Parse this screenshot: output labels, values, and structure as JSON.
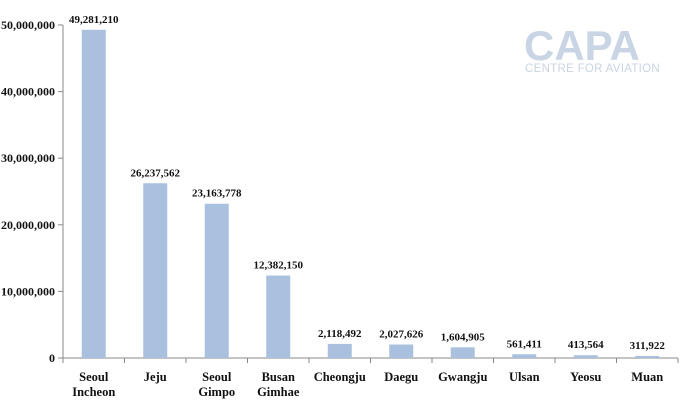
{
  "chart_data": {
    "type": "bar",
    "categories": [
      [
        "Seoul",
        "Incheon"
      ],
      [
        "Jeju"
      ],
      [
        "Seoul",
        "Gimpo"
      ],
      [
        "Busan",
        "Gimhae"
      ],
      [
        "Cheongju"
      ],
      [
        "Daegu"
      ],
      [
        "Gwangju"
      ],
      [
        "Ulsan"
      ],
      [
        "Yeosu"
      ],
      [
        "Muan"
      ]
    ],
    "values": [
      49281210,
      26237562,
      23163778,
      12382150,
      2118492,
      2027626,
      1604905,
      561411,
      413564,
      311922
    ],
    "data_labels": [
      "49,281,210",
      "26,237,562",
      "23,163,778",
      "12,382,150",
      "2,118,492",
      "2,027,626",
      "1,604,905",
      "561,411",
      "413,564",
      "311,922"
    ],
    "ylim": [
      0,
      50000000
    ],
    "yticks": [
      0,
      10000000,
      20000000,
      30000000,
      40000000,
      50000000
    ],
    "ytick_labels": [
      "0",
      "10,000,000",
      "20,000,000",
      "30,000,000",
      "40,000,000",
      "50,000,000"
    ],
    "bar_color": "#a9c1de",
    "grid": false,
    "xlabel": "",
    "ylabel": ""
  },
  "watermark": {
    "title": "CAPA",
    "subtitle": "CENTRE FOR AVIATION"
  }
}
